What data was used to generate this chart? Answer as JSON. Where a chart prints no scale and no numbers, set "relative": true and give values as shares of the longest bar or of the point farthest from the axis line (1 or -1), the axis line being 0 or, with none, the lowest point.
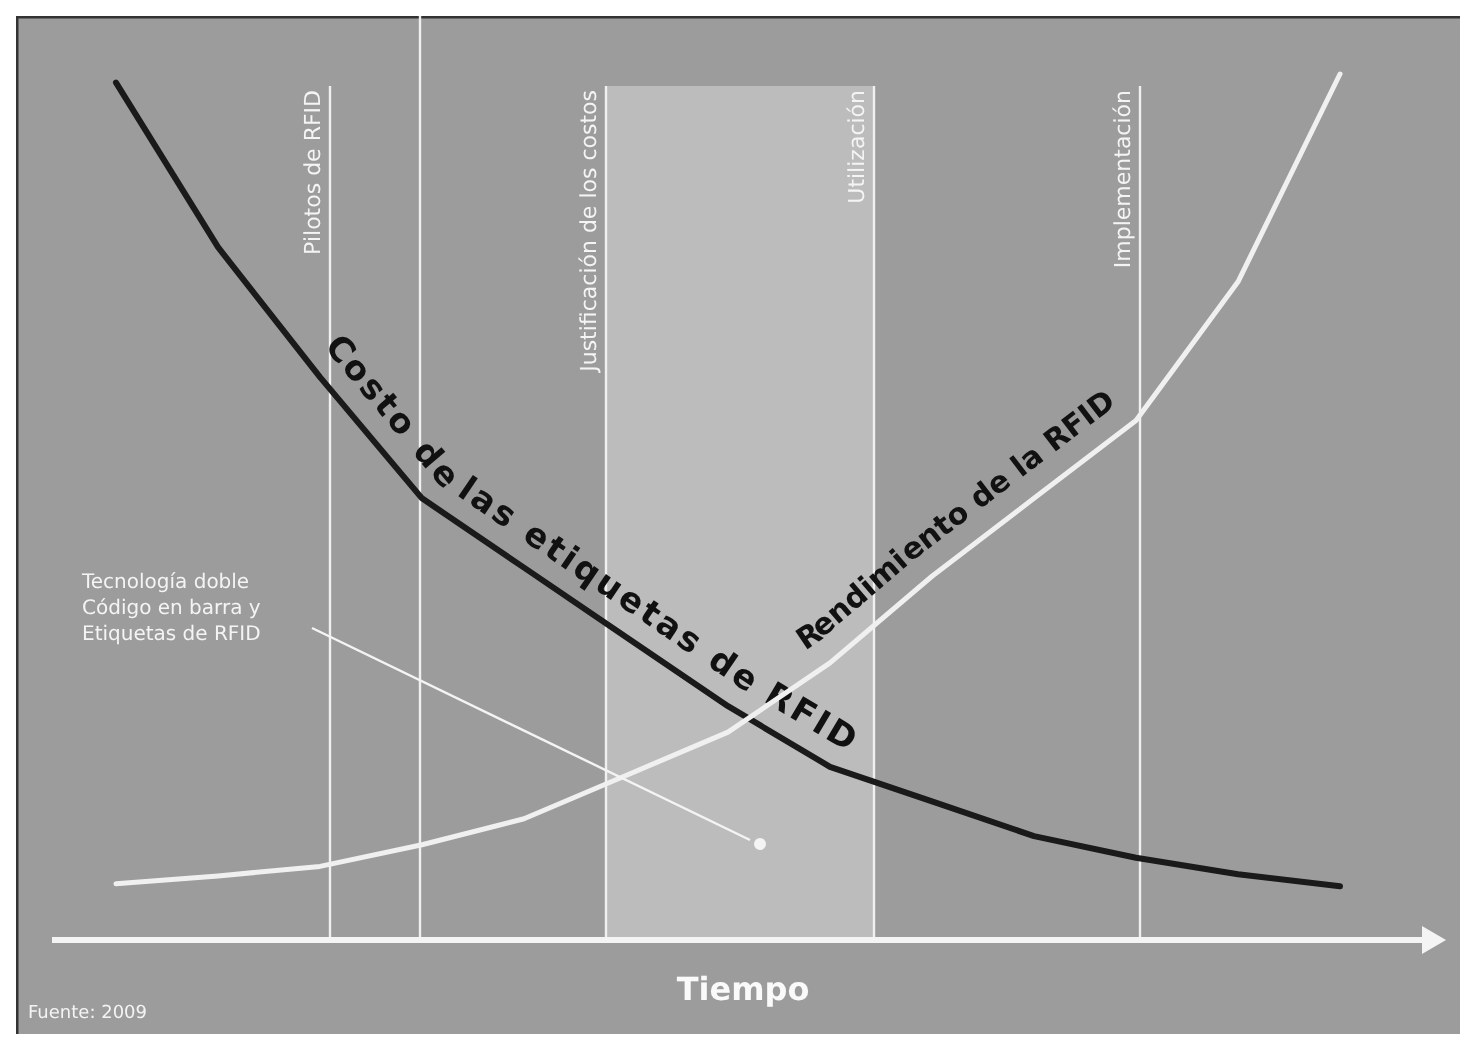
{
  "chart_data": {
    "type": "line",
    "relative": true,
    "xlabel": "Tiempo",
    "categories": [
      null,
      null,
      null,
      null,
      null,
      null,
      null,
      null,
      null,
      null,
      null,
      null,
      null
    ],
    "series": [
      {
        "name": "Costo de las etiquetas de RFID",
        "color": "#1a1a1a",
        "values": [
          0.99,
          0.8,
          0.65,
          0.51,
          0.43,
          0.35,
          0.27,
          0.2,
          0.16,
          0.12,
          0.095,
          0.076,
          0.062
        ]
      },
      {
        "name": "Rendimiento de la RFID",
        "color": "#f0f0f0",
        "values": [
          0.065,
          0.074,
          0.085,
          0.11,
          0.14,
          0.19,
          0.24,
          0.32,
          0.42,
          0.51,
          0.6,
          0.76,
          1
        ]
      }
    ],
    "annotations": [
      "Pilotos de RFID",
      "Justificación de los costos",
      "Utilización",
      "Implementación",
      "Tecnología doble Código en barra y Etiquetas de RFID",
      "Fuente: 2009"
    ]
  }
}
